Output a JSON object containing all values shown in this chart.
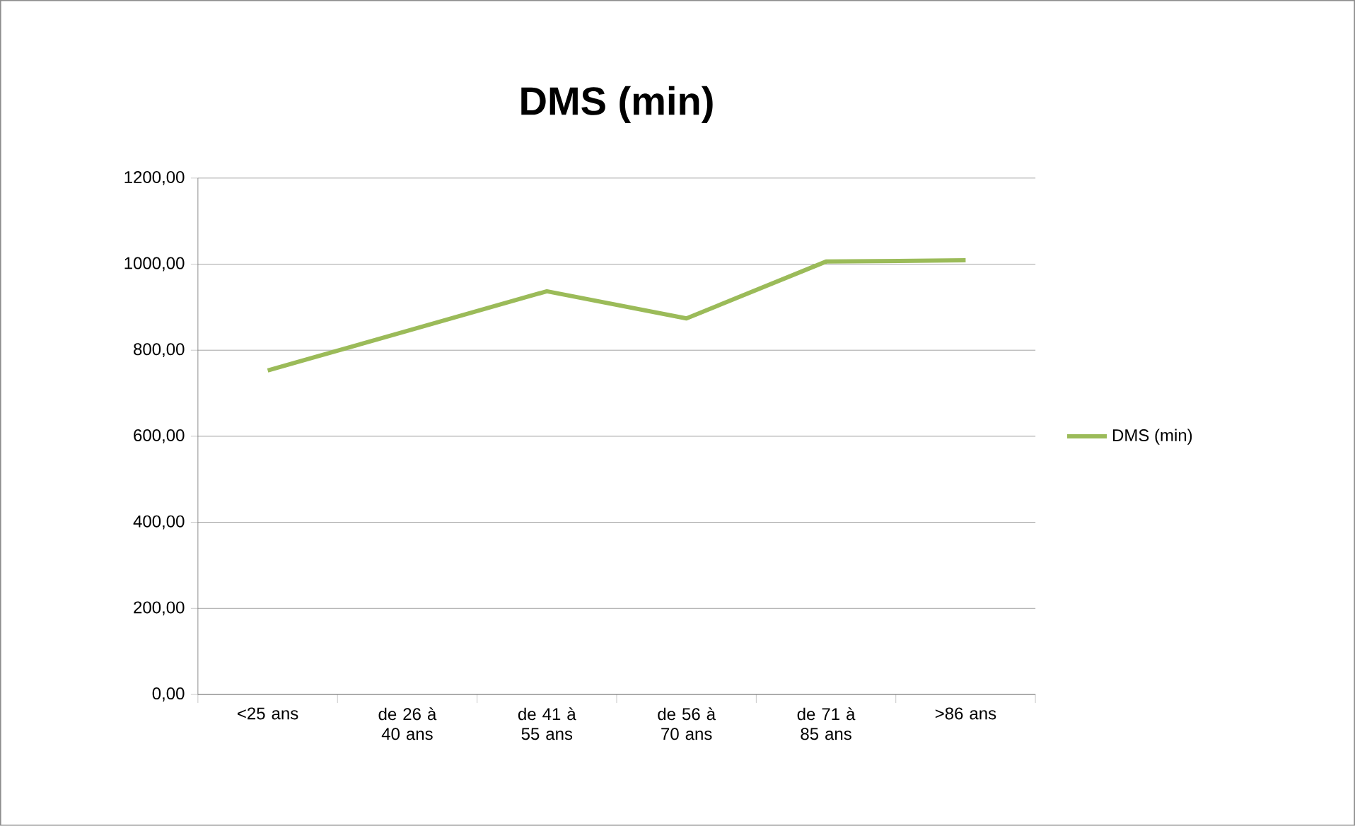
{
  "chart_data": {
    "type": "line",
    "title": "DMS (min)",
    "categories": [
      "<25 ans",
      "de 26 à 40 ans",
      "de 41 à 55 ans",
      "de 56 à 70 ans",
      "de 71 à 85 ans",
      ">86 ans"
    ],
    "series": [
      {
        "name": "DMS (min)",
        "color": "#9bbb59",
        "values": [
          753,
          845,
          937,
          874,
          1006,
          1009
        ]
      }
    ],
    "ylim": [
      0,
      1200
    ],
    "yticks": [
      {
        "value": 0,
        "label": "0,00"
      },
      {
        "value": 200,
        "label": "200,00"
      },
      {
        "value": 400,
        "label": "400,00"
      },
      {
        "value": 600,
        "label": "600,00"
      },
      {
        "value": 800,
        "label": "800,00"
      },
      {
        "value": 1000,
        "label": "1000,00"
      },
      {
        "value": 1200,
        "label": "1200,00"
      }
    ],
    "grid": "y",
    "legend": "right",
    "marker": "none",
    "line_style": "solid"
  }
}
